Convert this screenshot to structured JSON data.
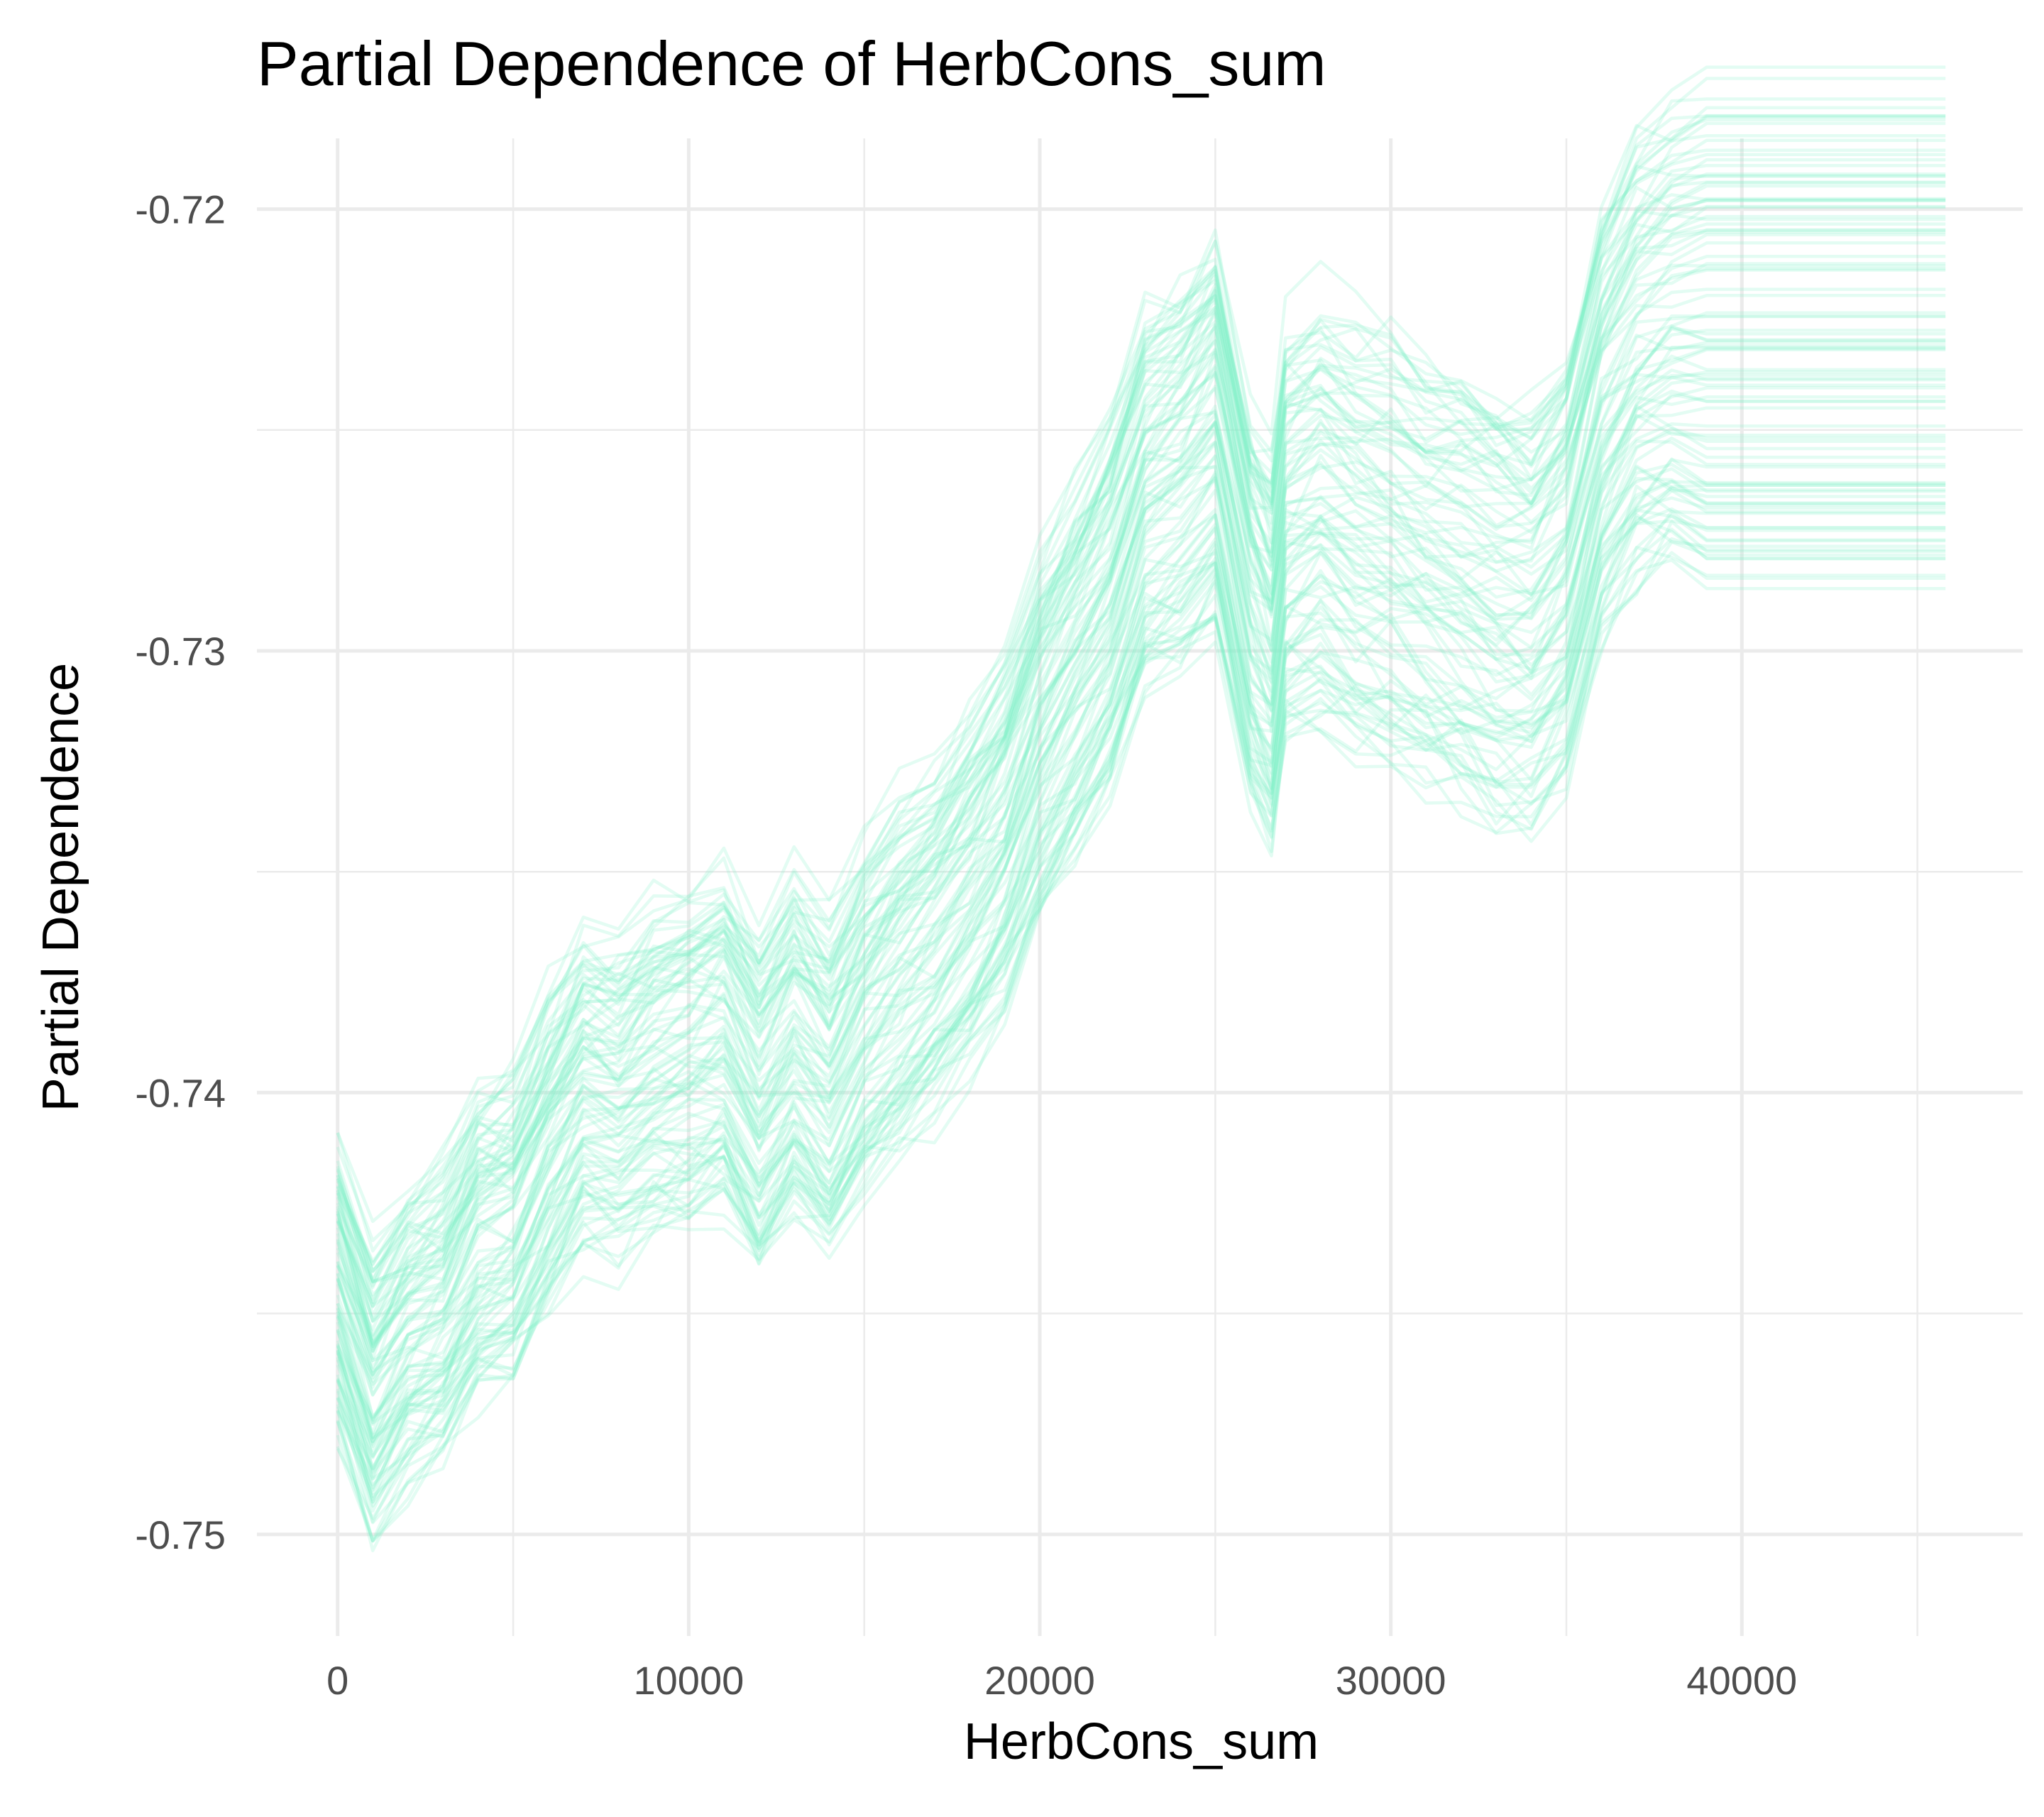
{
  "chart_data": {
    "type": "line",
    "title": "Partial Dependence of HerbCons_sum",
    "xlabel": "HerbCons_sum",
    "ylabel": "Partial Dependence",
    "xlim": [
      -2300,
      48000
    ],
    "ylim": [
      -0.7523,
      -0.7184
    ],
    "x_ticks": [
      0,
      10000,
      20000,
      30000,
      40000
    ],
    "x_tick_labels": [
      "0",
      "10000",
      "20000",
      "30000",
      "40000"
    ],
    "y_ticks": [
      -0.72,
      -0.73,
      -0.74,
      -0.75
    ],
    "y_tick_labels": [
      "-0.72",
      "-0.73",
      "-0.74",
      "-0.75"
    ],
    "grid": true,
    "legend": "none",
    "line_color": "#7ff0c8",
    "line_opacity": 0.22,
    "x": [
      0,
      1000,
      2000,
      3000,
      4000,
      5000,
      6000,
      7000,
      8000,
      9000,
      10000,
      11000,
      12000,
      13000,
      14000,
      15000,
      16000,
      17000,
      18000,
      19000,
      20000,
      21000,
      22000,
      23000,
      24000,
      25000,
      26000,
      26600,
      27000,
      28000,
      29000,
      30000,
      31000,
      32000,
      33000,
      34000,
      35000,
      36000,
      37000,
      38000,
      39000,
      40000,
      41000,
      42000,
      43000,
      44000,
      45000,
      45800
    ],
    "mean_curve": [
      -0.7445,
      -0.7468,
      -0.7455,
      -0.745,
      -0.7435,
      -0.743,
      -0.7413,
      -0.74,
      -0.7402,
      -0.7395,
      -0.7392,
      -0.7388,
      -0.7403,
      -0.739,
      -0.74,
      -0.7385,
      -0.7375,
      -0.7366,
      -0.7355,
      -0.7342,
      -0.732,
      -0.7305,
      -0.729,
      -0.7265,
      -0.726,
      -0.725,
      -0.729,
      -0.73,
      -0.7275,
      -0.727,
      -0.7275,
      -0.7278,
      -0.7283,
      -0.7286,
      -0.729,
      -0.7292,
      -0.7282,
      -0.725,
      -0.7235,
      -0.723,
      -0.723,
      -0.7232,
      -0.7231,
      -0.7232,
      -0.7231,
      -0.7232,
      -0.7231,
      -0.7232
    ],
    "curve_count": 100,
    "curve_offset_range": [
      -0.0052,
      0.0055
    ],
    "noise_scale": 0.0007,
    "seed": 7
  }
}
